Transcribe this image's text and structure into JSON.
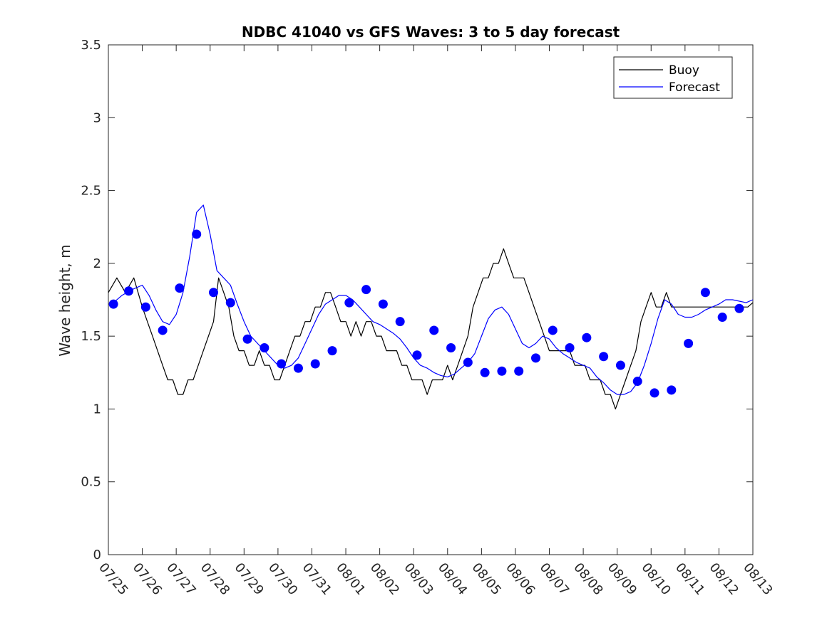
{
  "chart_data": {
    "type": "line",
    "title": "NDBC 41040 vs GFS Waves: 3 to 5 day forecast",
    "xlabel": "",
    "ylabel": "Wave height, m",
    "xlim": [
      "07/25",
      "08/13"
    ],
    "ylim": [
      0,
      3.5
    ],
    "grid": false,
    "legend": {
      "placement": "top-right",
      "entries": [
        "Buoy",
        "Forecast"
      ]
    },
    "colors": {
      "buoy": "#000000",
      "forecast": "#0000ff",
      "markers": "#0000ff",
      "axes": "#262626"
    },
    "x_tick_labels": [
      "07/25",
      "07/26",
      "07/27",
      "07/28",
      "07/29",
      "07/30",
      "07/31",
      "08/01",
      "08/02",
      "08/03",
      "08/04",
      "08/05",
      "08/06",
      "08/07",
      "08/08",
      "08/09",
      "08/10",
      "08/11",
      "08/12",
      "08/13"
    ],
    "y_ticks": [
      0,
      0.5,
      1,
      1.5,
      2,
      2.5,
      3,
      3.5
    ],
    "y_tick_labels": [
      "0",
      "0.5",
      "1",
      "1.5",
      "2",
      "2.5",
      "3",
      "3.5"
    ],
    "series": [
      {
        "name": "Buoy",
        "style": "line",
        "x": [
          0,
          0.25,
          0.5,
          0.75,
          1,
          1.15,
          1.3,
          1.45,
          1.6,
          1.75,
          1.9,
          2.05,
          2.2,
          2.35,
          2.5,
          2.65,
          2.8,
          2.95,
          3.1,
          3.25,
          3.4,
          3.55,
          3.7,
          3.85,
          4,
          4.15,
          4.3,
          4.45,
          4.6,
          4.75,
          4.9,
          5.05,
          5.2,
          5.35,
          5.5,
          5.65,
          5.8,
          5.95,
          6.1,
          6.25,
          6.4,
          6.55,
          6.7,
          6.85,
          7,
          7.15,
          7.3,
          7.45,
          7.6,
          7.75,
          7.9,
          8.05,
          8.2,
          8.35,
          8.5,
          8.65,
          8.8,
          8.95,
          9.1,
          9.25,
          9.4,
          9.55,
          9.7,
          9.85,
          10,
          10.15,
          10.3,
          10.45,
          10.6,
          10.75,
          10.9,
          11.05,
          11.2,
          11.35,
          11.5,
          11.65,
          11.8,
          11.95,
          12.1,
          12.25,
          12.4,
          12.55,
          12.7,
          12.85,
          13,
          13.15,
          13.3,
          13.45,
          13.6,
          13.75,
          13.9,
          14.05,
          14.2,
          14.35,
          14.5,
          14.65,
          14.8,
          14.95,
          15.1,
          15.25,
          15.4,
          15.55,
          15.7,
          15.85,
          16,
          16.15,
          16.3,
          16.45,
          16.6,
          16.75,
          16.9,
          17.05,
          17.2,
          17.35,
          17.5,
          17.65,
          17.8,
          17.95,
          18.1,
          18.25,
          18.4,
          18.55,
          18.7,
          18.85,
          19
        ],
        "y": [
          1.8,
          1.9,
          1.8,
          1.9,
          1.7,
          1.6,
          1.5,
          1.4,
          1.3,
          1.2,
          1.2,
          1.1,
          1.1,
          1.2,
          1.2,
          1.3,
          1.4,
          1.5,
          1.6,
          1.9,
          1.8,
          1.7,
          1.5,
          1.4,
          1.4,
          1.3,
          1.3,
          1.4,
          1.3,
          1.3,
          1.2,
          1.2,
          1.3,
          1.4,
          1.5,
          1.5,
          1.6,
          1.6,
          1.7,
          1.7,
          1.8,
          1.8,
          1.7,
          1.6,
          1.6,
          1.5,
          1.6,
          1.5,
          1.6,
          1.6,
          1.5,
          1.5,
          1.4,
          1.4,
          1.4,
          1.3,
          1.3,
          1.2,
          1.2,
          1.2,
          1.1,
          1.2,
          1.2,
          1.2,
          1.3,
          1.2,
          1.3,
          1.4,
          1.5,
          1.7,
          1.8,
          1.9,
          1.9,
          2,
          2,
          2.1,
          2,
          1.9,
          1.9,
          1.9,
          1.8,
          1.7,
          1.6,
          1.5,
          1.4,
          1.4,
          1.4,
          1.4,
          1.4,
          1.3,
          1.3,
          1.3,
          1.2,
          1.2,
          1.2,
          1.1,
          1.1,
          1,
          1.1,
          1.2,
          1.3,
          1.4,
          1.6,
          1.7,
          1.8,
          1.7,
          1.7,
          1.8,
          1.7,
          1.7,
          1.7,
          1.7,
          1.7,
          1.7,
          1.7,
          1.7,
          1.7,
          1.7,
          1.7,
          1.7,
          1.7,
          1.7,
          1.7,
          1.7,
          1.73
        ]
      },
      {
        "name": "Forecast",
        "style": "line",
        "x": [
          0.1,
          0.4,
          0.7,
          1,
          1.2,
          1.4,
          1.6,
          1.8,
          2,
          2.2,
          2.4,
          2.6,
          2.8,
          3,
          3.2,
          3.4,
          3.6,
          3.8,
          4,
          4.2,
          4.4,
          4.6,
          4.8,
          5,
          5.2,
          5.4,
          5.6,
          5.8,
          6,
          6.2,
          6.4,
          6.6,
          6.8,
          7,
          7.2,
          7.4,
          7.6,
          7.8,
          8,
          8.2,
          8.4,
          8.6,
          8.8,
          9,
          9.2,
          9.4,
          9.6,
          9.8,
          10,
          10.2,
          10.4,
          10.6,
          10.8,
          11,
          11.2,
          11.4,
          11.6,
          11.8,
          12,
          12.2,
          12.4,
          12.6,
          12.8,
          13,
          13.2,
          13.4,
          13.6,
          13.8,
          14,
          14.2,
          14.4,
          14.6,
          14.8,
          15,
          15.2,
          15.4,
          15.6,
          15.8,
          16,
          16.2,
          16.4,
          16.6,
          16.8,
          17,
          17.2,
          17.4,
          17.6,
          17.8,
          18,
          18.2,
          18.4,
          18.6,
          18.8,
          19
        ],
        "y": [
          1.72,
          1.78,
          1.82,
          1.85,
          1.78,
          1.68,
          1.6,
          1.58,
          1.65,
          1.8,
          2.05,
          2.35,
          2.4,
          2.2,
          1.95,
          1.9,
          1.85,
          1.72,
          1.6,
          1.5,
          1.45,
          1.4,
          1.35,
          1.3,
          1.28,
          1.3,
          1.35,
          1.45,
          1.55,
          1.65,
          1.72,
          1.75,
          1.78,
          1.78,
          1.75,
          1.7,
          1.65,
          1.6,
          1.58,
          1.55,
          1.52,
          1.48,
          1.42,
          1.35,
          1.3,
          1.28,
          1.25,
          1.23,
          1.22,
          1.24,
          1.28,
          1.32,
          1.38,
          1.5,
          1.62,
          1.68,
          1.7,
          1.65,
          1.55,
          1.45,
          1.42,
          1.45,
          1.5,
          1.48,
          1.42,
          1.38,
          1.35,
          1.32,
          1.3,
          1.28,
          1.22,
          1.18,
          1.13,
          1.1,
          1.1,
          1.12,
          1.18,
          1.3,
          1.45,
          1.62,
          1.75,
          1.72,
          1.65,
          1.63,
          1.63,
          1.65,
          1.68,
          1.7,
          1.72,
          1.75,
          1.75,
          1.74,
          1.73,
          1.75
        ]
      },
      {
        "name": "",
        "style": "markers",
        "x": [
          0.15,
          0.6,
          1.1,
          1.6,
          2.1,
          2.6,
          3.1,
          3.6,
          4.1,
          4.6,
          5.1,
          5.6,
          6.1,
          6.6,
          7.1,
          7.6,
          8.1,
          8.6,
          9.1,
          9.6,
          10.1,
          10.6,
          11.1,
          11.6,
          12.1,
          12.6,
          13.1,
          13.6,
          14.1,
          14.6,
          15.1,
          15.6,
          16.1,
          16.6,
          17.1,
          17.6,
          18.1,
          18.6
        ],
        "y": [
          1.72,
          1.81,
          1.7,
          1.54,
          1.83,
          2.2,
          1.8,
          1.73,
          1.48,
          1.42,
          1.31,
          1.28,
          1.31,
          1.4,
          1.73,
          1.82,
          1.72,
          1.6,
          1.37,
          1.54,
          1.42,
          1.32,
          1.25,
          1.26,
          1.26,
          1.35,
          1.54,
          1.42,
          1.49,
          1.36,
          1.3,
          1.19,
          1.11,
          1.13,
          1.45,
          1.8,
          1.63,
          1.69
        ]
      }
    ]
  }
}
